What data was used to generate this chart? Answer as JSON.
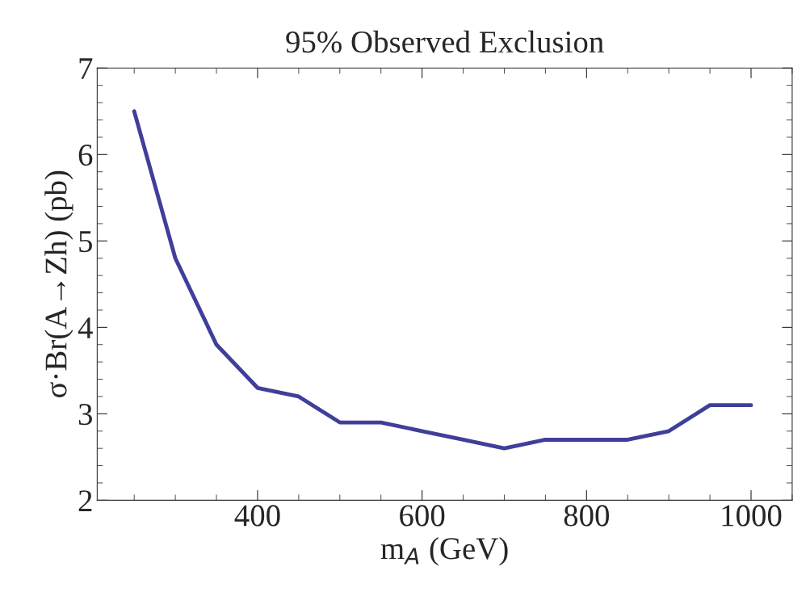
{
  "chart_data": {
    "type": "line",
    "title": "95% Observed Exclusion",
    "xlabel": "m$_{A}$ (GeV)",
    "ylabel": "σ·Br(A→Zh) (pb)",
    "x": [
      250,
      300,
      350,
      400,
      450,
      500,
      550,
      600,
      650,
      700,
      750,
      800,
      850,
      900,
      950,
      1000
    ],
    "series": [
      {
        "color": "#3f3f9b",
        "values": [
          6.5,
          4.8,
          3.8,
          3.3,
          3.2,
          2.9,
          2.9,
          2.8,
          2.7,
          2.6,
          2.7,
          2.7,
          2.7,
          2.8,
          3.1,
          3.1
        ]
      }
    ],
    "xlim": [
      205,
      1050
    ],
    "xticks": [
      400,
      600,
      800,
      1000
    ],
    "ylim": [
      2,
      7
    ],
    "yticks": [
      2,
      3,
      4,
      5,
      6,
      7
    ],
    "grid": false,
    "marker": "none",
    "line_style": "solid"
  }
}
